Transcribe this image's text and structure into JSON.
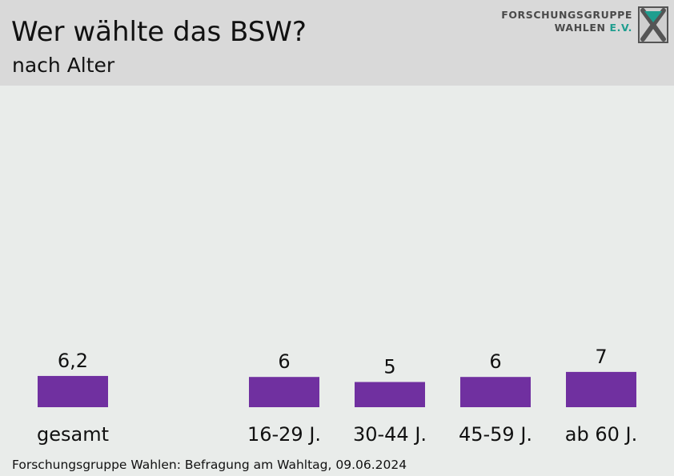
{
  "header": {
    "title": "Wer wählte das BSW?",
    "subtitle": "nach Alter"
  },
  "logo": {
    "line1": "FORSCHUNGSGRUPPE",
    "line2_main": "WAHLEN ",
    "line2_accent": "E.V."
  },
  "source": "Forschungsgruppe Wahlen: Befragung am Wahltag, 09.06.2024",
  "colors": {
    "bar": "#7030a0",
    "header_bg": "#d9d9d9",
    "plot_bg": "#e9ecea",
    "logo_accent": "#1f9e8f"
  },
  "chart_data": {
    "type": "bar",
    "categories": [
      "gesamt",
      "16-29 J.",
      "30-44 J.",
      "45-59 J.",
      "ab 60 J."
    ],
    "values": [
      6.2,
      6,
      5,
      6,
      7
    ],
    "value_labels": [
      "6,2",
      "6",
      "5",
      "6",
      "7"
    ],
    "title": "Wer wählte das BSW?",
    "subtitle": "nach Alter",
    "xlabel": "",
    "ylabel": "",
    "grid": false,
    "legend": "none"
  }
}
